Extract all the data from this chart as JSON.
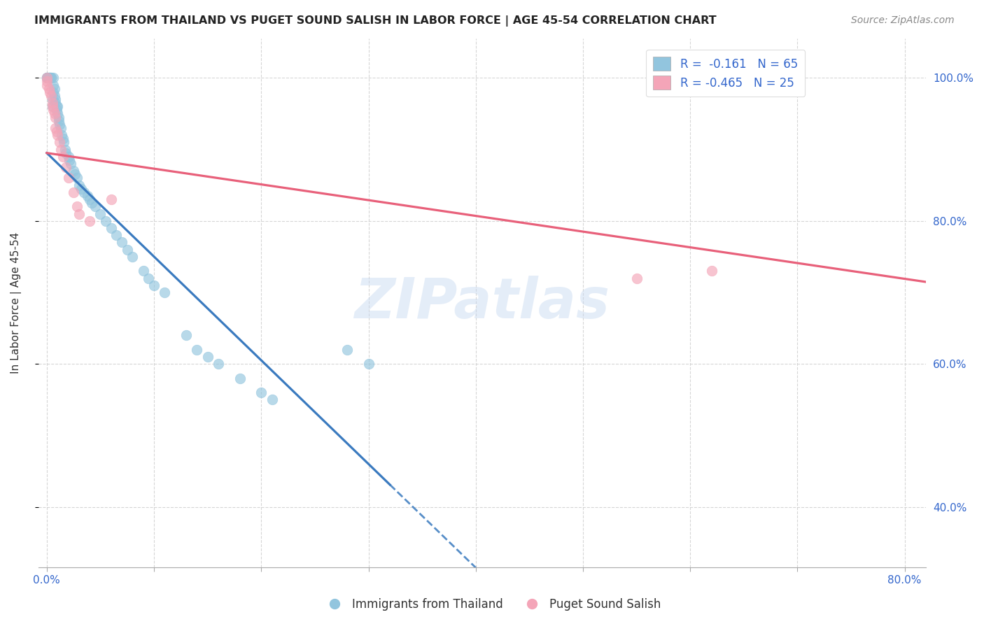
{
  "title": "IMMIGRANTS FROM THAILAND VS PUGET SOUND SALISH IN LABOR FORCE | AGE 45-54 CORRELATION CHART",
  "source": "Source: ZipAtlas.com",
  "ylabel": "In Labor Force | Age 45-54",
  "xlim": [
    -0.008,
    0.82
  ],
  "ylim": [
    0.315,
    1.055
  ],
  "xticks": [
    0.0,
    0.1,
    0.2,
    0.3,
    0.4,
    0.5,
    0.6,
    0.7,
    0.8
  ],
  "xticklabels": [
    "0.0%",
    "",
    "",
    "",
    "",
    "",
    "",
    "",
    "80.0%"
  ],
  "yticks_right": [
    0.4,
    0.6,
    0.8,
    1.0
  ],
  "ytick_right_labels": [
    "40.0%",
    "60.0%",
    "80.0%",
    "100.0%"
  ],
  "color_blue": "#92c5de",
  "color_pink": "#f4a5b8",
  "color_blue_line": "#3a7abf",
  "color_pink_line": "#e8607a",
  "watermark": "ZIPatlas",
  "thai_x": [
    0.0,
    0.0,
    0.0,
    0.0,
    0.002,
    0.002,
    0.003,
    0.003,
    0.004,
    0.004,
    0.005,
    0.005,
    0.006,
    0.006,
    0.006,
    0.007,
    0.007,
    0.008,
    0.008,
    0.009,
    0.009,
    0.01,
    0.01,
    0.011,
    0.011,
    0.012,
    0.013,
    0.014,
    0.015,
    0.016,
    0.017,
    0.018,
    0.02,
    0.021,
    0.022,
    0.025,
    0.026,
    0.028,
    0.03,
    0.032,
    0.035,
    0.038,
    0.04,
    0.042,
    0.045,
    0.05,
    0.055,
    0.06,
    0.065,
    0.07,
    0.075,
    0.08,
    0.09,
    0.095,
    0.1,
    0.11,
    0.13,
    0.14,
    0.15,
    0.16,
    0.18,
    0.2,
    0.21,
    0.28,
    0.3
  ],
  "thai_y": [
    1.0,
    1.0,
    1.0,
    1.0,
    1.0,
    1.0,
    1.0,
    1.0,
    1.0,
    1.0,
    0.97,
    0.96,
    0.98,
    0.99,
    1.0,
    0.985,
    0.975,
    0.97,
    0.965,
    0.96,
    0.955,
    0.96,
    0.95,
    0.945,
    0.94,
    0.935,
    0.93,
    0.92,
    0.915,
    0.91,
    0.9,
    0.895,
    0.89,
    0.885,
    0.88,
    0.87,
    0.865,
    0.86,
    0.85,
    0.845,
    0.84,
    0.835,
    0.83,
    0.825,
    0.82,
    0.81,
    0.8,
    0.79,
    0.78,
    0.77,
    0.76,
    0.75,
    0.73,
    0.72,
    0.71,
    0.7,
    0.64,
    0.62,
    0.61,
    0.6,
    0.58,
    0.56,
    0.55,
    0.62,
    0.6
  ],
  "salish_x": [
    0.0,
    0.0,
    0.0,
    0.002,
    0.003,
    0.004,
    0.005,
    0.005,
    0.006,
    0.007,
    0.008,
    0.008,
    0.009,
    0.01,
    0.012,
    0.013,
    0.015,
    0.018,
    0.02,
    0.025,
    0.028,
    0.03,
    0.04,
    0.06,
    0.55,
    0.62
  ],
  "salish_y": [
    1.0,
    0.995,
    0.99,
    0.985,
    0.98,
    0.975,
    0.965,
    0.96,
    0.955,
    0.95,
    0.945,
    0.93,
    0.925,
    0.92,
    0.91,
    0.9,
    0.89,
    0.875,
    0.86,
    0.84,
    0.82,
    0.81,
    0.8,
    0.83,
    0.72,
    0.73
  ],
  "blue_line_x0": 0.0,
  "blue_line_x_solid_end": 0.32,
  "blue_line_x_dashed_end": 0.82,
  "blue_line_y0": 0.895,
  "blue_line_slope": -1.45,
  "pink_line_x0": 0.0,
  "pink_line_x1": 0.82,
  "pink_line_y0": 0.895,
  "pink_line_slope": -0.22
}
